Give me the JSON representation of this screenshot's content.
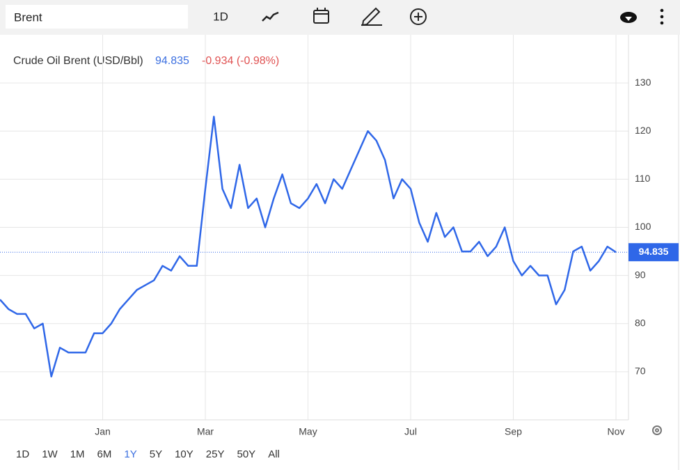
{
  "toolbar": {
    "search": "Brent",
    "interval": "1D"
  },
  "chart_data": {
    "type": "line",
    "title": "Crude Oil Brent (USD/Bbl)",
    "change": "-0.934 (-0.98%)",
    "categories": [
      null,
      null,
      null,
      null,
      null,
      null,
      null,
      null,
      null,
      null,
      null,
      null,
      "Jan",
      null,
      null,
      null,
      null,
      null,
      null,
      null,
      null,
      null,
      null,
      null,
      "Mar",
      null,
      null,
      null,
      null,
      null,
      null,
      null,
      null,
      null,
      null,
      null,
      "May",
      null,
      null,
      null,
      null,
      null,
      null,
      null,
      null,
      null,
      null,
      null,
      "Jul",
      null,
      null,
      null,
      null,
      null,
      null,
      null,
      null,
      null,
      null,
      null,
      "Sep",
      null,
      null,
      null,
      null,
      null,
      null,
      null,
      null,
      null,
      null,
      null,
      "Nov"
    ],
    "values": [
      85,
      83,
      82,
      82,
      79,
      80,
      69,
      75,
      74,
      74,
      74,
      78,
      78,
      80,
      83,
      85,
      87,
      88,
      89,
      92,
      91,
      94,
      92,
      92,
      108,
      123,
      108,
      104,
      113,
      104,
      106,
      100,
      106,
      111,
      105,
      104,
      106,
      109,
      105,
      110,
      108,
      112,
      116,
      120,
      118,
      114,
      106,
      110,
      108,
      101,
      97,
      103,
      98,
      100,
      95,
      95,
      97,
      94,
      96,
      100,
      93,
      90,
      92,
      90,
      90,
      84,
      87,
      95,
      96,
      91,
      93,
      96,
      94.835
    ],
    "color": "#2f67e8",
    "ylim": [
      60,
      140
    ],
    "yticks": [
      70,
      80,
      90,
      100,
      110,
      120,
      130
    ],
    "grid": true
  },
  "range_buttons": [
    "1D",
    "1W",
    "1M",
    "6M",
    "1Y",
    "5Y",
    "10Y",
    "25Y",
    "50Y",
    "All"
  ],
  "selected_range": "1Y"
}
